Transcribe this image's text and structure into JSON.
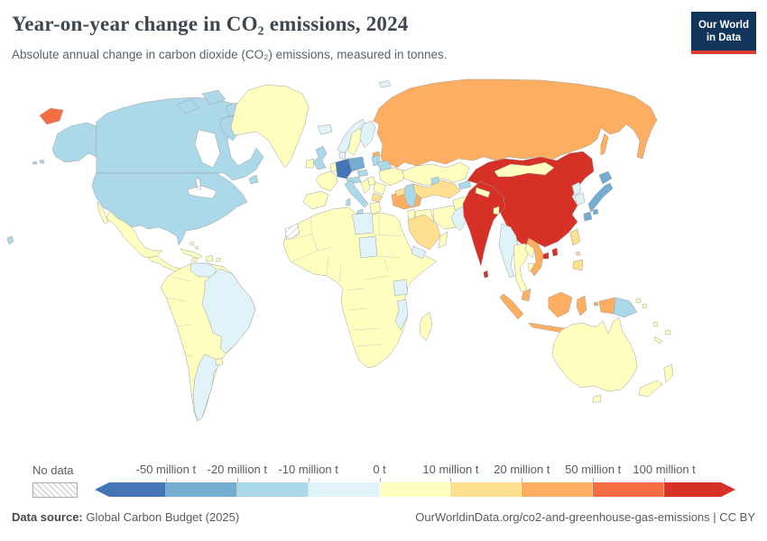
{
  "header": {
    "title": "Year-on-year change in CO₂ emissions, 2024",
    "subtitle": "Absolute annual change in carbon dioxide (CO₂) emissions, measured in tonnes.",
    "logo_line1": "Our World",
    "logo_line2": "in Data"
  },
  "colors": {
    "logo_navy": "#12355b",
    "logo_red": "#dc3d33",
    "border_gray": "#9f9f9f"
  },
  "chart_data": {
    "type": "choropleth_map",
    "title": "Year-on-year change in CO₂ emissions, 2024",
    "subtitle": "Absolute annual change in carbon dioxide (CO₂) emissions, measured in tonnes.",
    "unit": "tonnes of CO₂",
    "legend_labels": [
      "-50 million t",
      "-20 million t",
      "-10 million t",
      "0 t",
      "10 million t",
      "20 million t",
      "50 million t",
      "100 million t"
    ],
    "no_data_label": "No data",
    "bin_colors": [
      "#4575b4",
      "#74add1",
      "#abd9e9",
      "#e0f3f8",
      "#ffffbf",
      "#fee090",
      "#fdae61",
      "#f46d43",
      "#d73027"
    ],
    "regions": {
      "canada": 2,
      "united-states": 2,
      "alaska": 2,
      "hawaii": 2,
      "greenland": 4,
      "iceland": 3,
      "mexico": 4,
      "central-america": 4,
      "cuba": 4,
      "caribbean": 4,
      "south-america": 4,
      "venezuela": 3,
      "brazil": 3,
      "argentina": 3,
      "united-kingdom": 2,
      "ireland": 4,
      "norway": 3,
      "sweden": 4,
      "finland": 3,
      "denmark": 3,
      "svalbard": 3,
      "germany": 0,
      "poland": 1,
      "czechia-austria": 2,
      "france": 4,
      "benelux": 4,
      "iberia": 4,
      "italy": 2,
      "balkans": 4,
      "hungary": 4,
      "greece": 4,
      "romania": 4,
      "bulgaria": 5,
      "baltics": 2,
      "estonia": 6,
      "belarus": 2,
      "ukraine": 4,
      "caucasus": 5,
      "russia": 6,
      "russia-chukotka": 7,
      "russia-sakhalin": 6,
      "kazakhstan": 4,
      "central-asia": 5,
      "kyrgyzstan": 2,
      "caspian-sea": 2,
      "aral-sea": 2,
      "turkey": 6,
      "levant": 4,
      "iraq": 4,
      "iran": 4,
      "saudi-arabia": 5,
      "yemen": 3,
      "oman": 4,
      "afghanistan": 4,
      "pakistan": 3,
      "india": 8,
      "nepal": 4,
      "bangladesh": 4,
      "sri-lanka": 8,
      "china": 8,
      "mongolia": 4,
      "taiwan": 8,
      "hainan": 8,
      "north-korea": 3,
      "south-korea": 3,
      "japan": 1,
      "myanmar": 3,
      "thailand": 4,
      "laos": 4,
      "cambodia": 4,
      "vietnam": 6,
      "malaysia": 6,
      "indonesia": 6,
      "philippines": 5,
      "papua-new-guinea": 2,
      "africa": 4,
      "libya": 3,
      "chad": 3,
      "tanzania": 3,
      "mozambique": 3,
      "madagascar": 4,
      "western-sahara": "nodata",
      "australia": 4,
      "tasmania": 4,
      "new-zealand": 4,
      "pacific-islands": 4
    }
  },
  "footer": {
    "source_label": "Data source:",
    "source_value": "Global Carbon Budget (2025)",
    "credit": "OurWorldinData.org/co2-and-greenhouse-gas-emissions | CC BY"
  }
}
